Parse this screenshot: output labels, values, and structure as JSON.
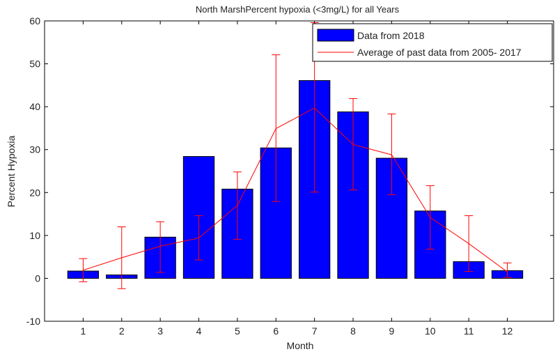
{
  "chart_data": {
    "type": "bar",
    "title": "North MarshPercent hypoxia (<3mg/L) for all Years",
    "xlabel": "Month",
    "ylabel": "Percent Hypoxia",
    "xlim": [
      0,
      13.2
    ],
    "ylim": [
      -10,
      60
    ],
    "x_ticks": [
      "1",
      "2",
      "3",
      "4",
      "5",
      "6",
      "7",
      "8",
      "9",
      "10",
      "11",
      "12"
    ],
    "y_ticks": [
      -10,
      0,
      10,
      20,
      30,
      40,
      50,
      60
    ],
    "grid": false,
    "legend_position": "top-right",
    "series": [
      {
        "name": "Data from 2018",
        "type": "bar",
        "color": "#0000ff",
        "x": [
          1,
          2,
          3,
          4,
          5,
          6,
          7,
          8,
          9,
          10,
          11,
          12
        ],
        "values": [
          1.7,
          0.8,
          9.6,
          28.4,
          20.8,
          30.4,
          46.1,
          38.8,
          28.0,
          15.7,
          3.9,
          1.8
        ]
      },
      {
        "name": "Average of past data from 2005- 2017",
        "type": "line",
        "color": "#ff0000",
        "x": [
          1,
          2,
          3,
          4,
          5,
          6,
          7,
          8,
          9,
          10,
          11,
          12
        ],
        "values": [
          1.9,
          4.8,
          7.5,
          9.4,
          17.0,
          34.9,
          39.7,
          31.2,
          28.8,
          14.2,
          8.1,
          1.5
        ],
        "error_low": [
          -0.8,
          -2.4,
          1.4,
          4.3,
          9.1,
          17.9,
          20.1,
          20.6,
          19.5,
          6.8,
          1.6,
          0.2
        ],
        "error_high": [
          4.6,
          12.0,
          13.2,
          14.6,
          24.8,
          52.1,
          59.6,
          41.9,
          38.3,
          21.6,
          14.6,
          3.6
        ]
      }
    ]
  }
}
